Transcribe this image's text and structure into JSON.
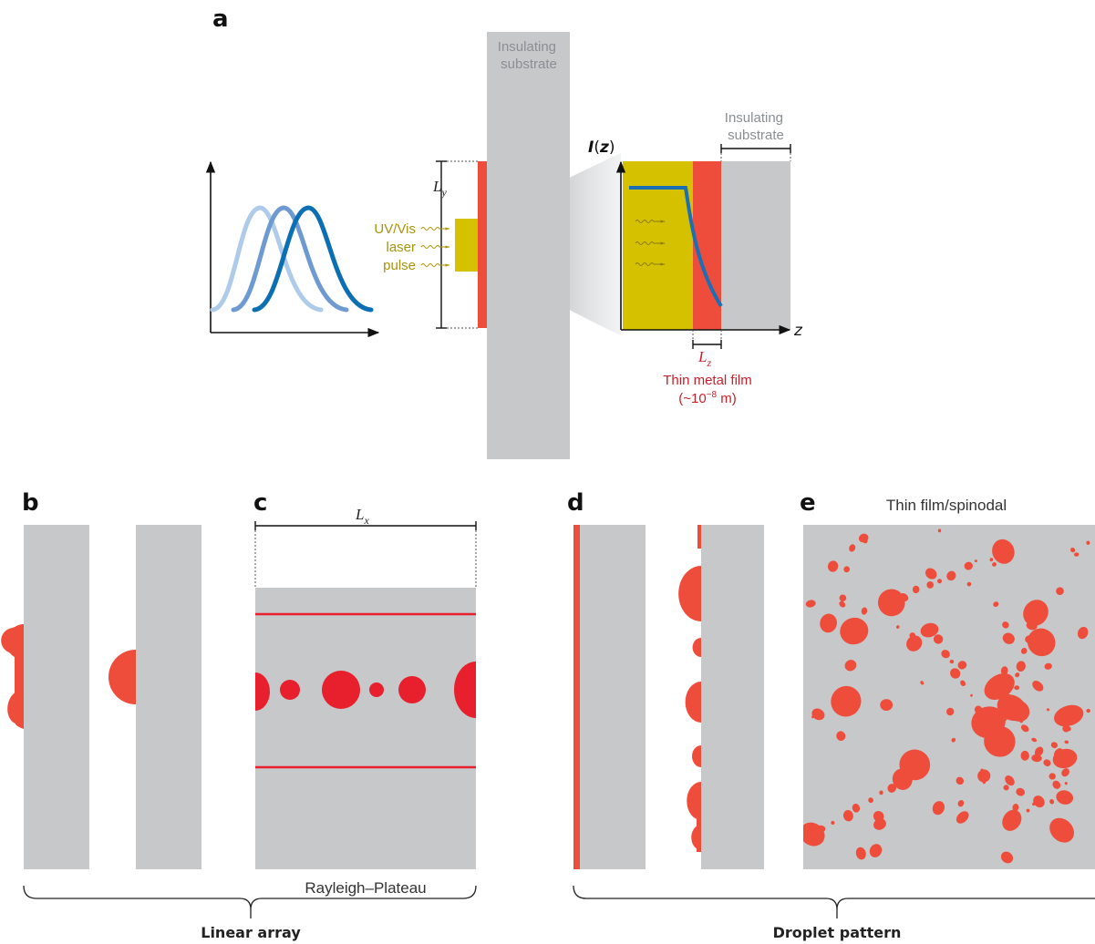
{
  "colors": {
    "substrate": "#c6c8ca",
    "metal_film": "#ef4d3b",
    "droplet_rp": "#e8202e",
    "laser": "#d5c100",
    "laser_text": "#a8930a",
    "film_text": "#c8202a",
    "pulse_dark": "#0d6fb3",
    "pulse_mid": "#6d9ad1",
    "pulse_light": "#aecbea",
    "intensity_curve": "#1a6fb5"
  },
  "panels": {
    "a": {
      "letter": "a",
      "substrate_label": [
        "Insulating",
        "substrate"
      ],
      "inset_substrate_label": [
        "Insulating",
        "substrate"
      ],
      "laser_label": [
        "UV/Vis",
        "laser",
        "pulse"
      ],
      "dim_y": "L",
      "dim_y_sub": "y",
      "dim_z": "L",
      "dim_z_sub": "z",
      "axis_i_main": "I",
      "axis_i_var": "z",
      "axis_z": "z",
      "film_label": "Thin metal film",
      "film_thickness_pre": "(~10",
      "film_thickness_exp": "−8",
      "film_thickness_post": " m)"
    },
    "b": {
      "letter": "b"
    },
    "c": {
      "letter": "c",
      "dim_x": "L",
      "dim_x_sub": "x",
      "caption": "Rayleigh–Plateau"
    },
    "d": {
      "letter": "d"
    },
    "e": {
      "letter": "e",
      "caption": "Thin film/spinodal"
    }
  },
  "groups": {
    "linear": "Linear array",
    "droplet": "Droplet pattern"
  }
}
